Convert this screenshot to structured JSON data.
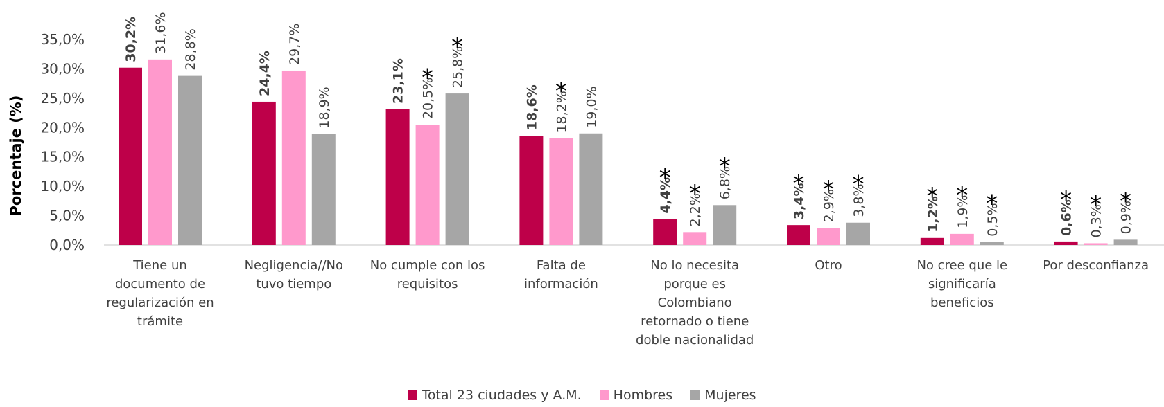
{
  "chart_data": {
    "type": "bar",
    "y_label": "Porcentaje (%)",
    "categories": [
      "Tiene un documento de regularización en trámite",
      "Negligencia//No tuvo tiempo",
      "No cumple con los requisitos",
      "Falta de información",
      "No lo necesita porque es Colombiano retornado o tiene doble nacionalidad",
      "Otro",
      "No cree que le significaría beneficios",
      "Por desconfianza"
    ],
    "series": [
      {
        "name": "Total 23 ciudades y A.M.",
        "color": "#be0049",
        "values": [
          30.2,
          24.4,
          23.1,
          18.6,
          4.4,
          3.4,
          1.2,
          0.6
        ],
        "value_labels": [
          "30,2%",
          "24,4%",
          "23,1%",
          "18,6%",
          "4,4%",
          "3,4%",
          "1,2%",
          "0,6%"
        ],
        "flags": [
          null,
          null,
          null,
          null,
          "*",
          "*",
          "*",
          "*"
        ]
      },
      {
        "name": "Hombres",
        "color": "#ff99cc",
        "values": [
          31.6,
          29.7,
          20.5,
          18.2,
          2.2,
          2.9,
          1.9,
          0.3
        ],
        "value_labels": [
          "31,6%",
          "29,7%",
          "20,5%",
          "18,2%",
          "2,2%",
          "2,9%",
          "1,9%",
          "0,3%"
        ],
        "flags": [
          null,
          null,
          "*",
          "*",
          "*",
          "*",
          "*",
          "*"
        ]
      },
      {
        "name": "Mujeres",
        "color": "#a6a6a6",
        "values": [
          28.8,
          18.9,
          25.8,
          19.0,
          6.8,
          3.8,
          0.5,
          0.9
        ],
        "value_labels": [
          "28,8%",
          "18,9%",
          "25,8%",
          "19,0%",
          "6,8%",
          "3,8%",
          "0,5%",
          "0,9%"
        ],
        "flags": [
          null,
          null,
          "*",
          null,
          "*",
          "*",
          "*",
          "*"
        ]
      }
    ],
    "ylim": [
      0,
      35
    ],
    "yticks": [
      {
        "value": 0,
        "label": "0,0%"
      },
      {
        "value": 5,
        "label": "5,0%"
      },
      {
        "value": 10,
        "label": "10,0%"
      },
      {
        "value": 15,
        "label": "15,0%"
      },
      {
        "value": 20,
        "label": "20,0%"
      },
      {
        "value": 25,
        "label": "25,0%"
      },
      {
        "value": 30,
        "label": "30,0%"
      },
      {
        "value": 35,
        "label": "35,0%"
      }
    ],
    "grid": false,
    "legend": "bottom"
  }
}
